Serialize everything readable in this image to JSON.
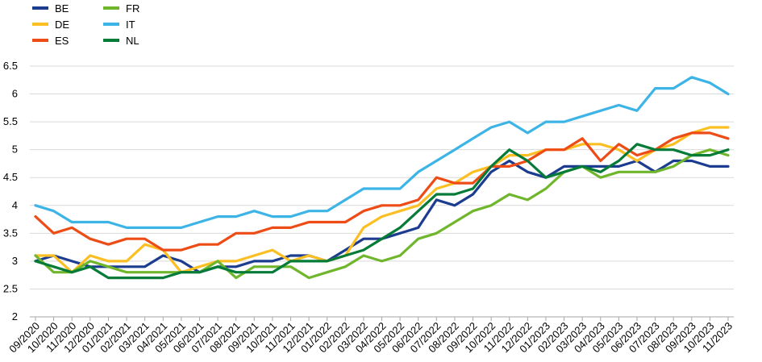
{
  "chart_data": {
    "type": "line",
    "title": "",
    "xlabel": "",
    "ylabel": "",
    "ylim": [
      2,
      6.5
    ],
    "yticks": [
      "2",
      "2.5",
      "3",
      "3.5",
      "4",
      "4.5",
      "5",
      "5.5",
      "6",
      "6.5"
    ],
    "grid": "horizontal",
    "legend_position": "top-left",
    "x": [
      "09/2020",
      "10/2020",
      "11/2020",
      "12/2020",
      "01/2021",
      "02/2021",
      "03/2021",
      "04/2021",
      "05/2021",
      "06/2021",
      "07/2021",
      "08/2021",
      "09/2021",
      "10/2021",
      "11/2021",
      "12/2021",
      "01/2022",
      "02/2022",
      "03/2022",
      "04/2022",
      "05/2022",
      "06/2022",
      "07/2022",
      "08/2022",
      "09/2022",
      "10/2022",
      "11/2022",
      "12/2022",
      "01/2023",
      "02/2023",
      "03/2023",
      "04/2023",
      "05/2023",
      "06/2023",
      "07/2023",
      "08/2023",
      "09/2023",
      "10/2023",
      "11/2023"
    ],
    "series": [
      {
        "name": "BE",
        "color": "#1b3c8f",
        "values": [
          3.0,
          3.1,
          3.0,
          2.9,
          2.9,
          2.9,
          2.9,
          3.1,
          3.0,
          2.8,
          2.9,
          2.9,
          3.0,
          3.0,
          3.1,
          3.1,
          3.0,
          3.2,
          3.4,
          3.4,
          3.5,
          3.6,
          4.1,
          4.0,
          4.2,
          4.6,
          4.8,
          4.6,
          4.5,
          4.7,
          4.7,
          4.7,
          4.7,
          4.8,
          4.6,
          4.8,
          4.8,
          4.7,
          4.7
        ]
      },
      {
        "name": "DE",
        "color": "#fbbf24",
        "values": [
          3.1,
          3.1,
          2.8,
          3.1,
          3.0,
          3.0,
          3.3,
          3.2,
          2.8,
          2.9,
          3.0,
          3.0,
          3.1,
          3.2,
          3.0,
          3.1,
          3.0,
          3.1,
          3.6,
          3.8,
          3.9,
          4.0,
          4.3,
          4.4,
          4.6,
          4.7,
          4.9,
          4.9,
          5.0,
          5.0,
          5.1,
          5.1,
          5.0,
          4.8,
          5.0,
          5.1,
          5.3,
          5.4,
          5.4
        ]
      },
      {
        "name": "ES",
        "color": "#ee4c16",
        "values": [
          3.8,
          3.5,
          3.6,
          3.4,
          3.3,
          3.4,
          3.4,
          3.2,
          3.2,
          3.3,
          3.3,
          3.5,
          3.5,
          3.6,
          3.6,
          3.7,
          3.7,
          3.7,
          3.9,
          4.0,
          4.0,
          4.1,
          4.5,
          4.4,
          4.4,
          4.7,
          4.7,
          4.8,
          5.0,
          5.0,
          5.2,
          4.8,
          5.1,
          4.9,
          5.0,
          5.2,
          5.3,
          5.3,
          5.2
        ]
      },
      {
        "name": "FR",
        "color": "#70b62c",
        "values": [
          3.1,
          2.8,
          2.8,
          3.0,
          2.9,
          2.8,
          2.8,
          2.8,
          2.8,
          2.8,
          3.0,
          2.7,
          2.9,
          2.9,
          2.9,
          2.7,
          2.8,
          2.9,
          3.1,
          3.0,
          3.1,
          3.4,
          3.5,
          3.7,
          3.9,
          4.0,
          4.2,
          4.1,
          4.3,
          4.6,
          4.7,
          4.5,
          4.6,
          4.6,
          4.6,
          4.7,
          4.9,
          5.0,
          4.9
        ]
      },
      {
        "name": "IT",
        "color": "#3db4e6",
        "values": [
          4.0,
          3.9,
          3.7,
          3.7,
          3.7,
          3.6,
          3.6,
          3.6,
          3.6,
          3.7,
          3.8,
          3.8,
          3.9,
          3.8,
          3.8,
          3.9,
          3.9,
          4.1,
          4.3,
          4.3,
          4.3,
          4.6,
          4.8,
          5.0,
          5.2,
          5.4,
          5.5,
          5.3,
          5.5,
          5.5,
          5.6,
          5.7,
          5.8,
          5.7,
          6.1,
          6.1,
          6.3,
          6.2,
          6.0
        ]
      },
      {
        "name": "NL",
        "color": "#057b38",
        "values": [
          3.0,
          2.9,
          2.8,
          2.9,
          2.7,
          2.7,
          2.7,
          2.7,
          2.8,
          2.8,
          2.9,
          2.8,
          2.8,
          2.8,
          3.0,
          3.0,
          3.0,
          3.1,
          3.2,
          3.4,
          3.6,
          3.9,
          4.2,
          4.2,
          4.3,
          4.7,
          5.0,
          4.8,
          4.5,
          4.6,
          4.7,
          4.6,
          4.8,
          5.1,
          5.0,
          5.0,
          4.9,
          4.9,
          5.0
        ]
      }
    ]
  }
}
